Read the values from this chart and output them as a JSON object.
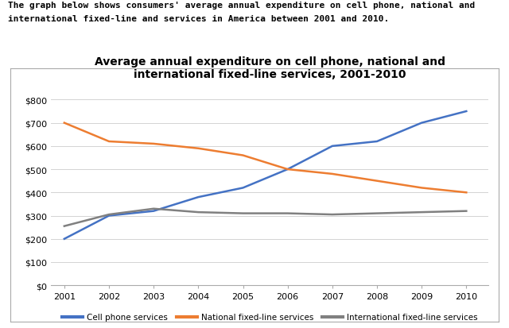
{
  "title": "Average annual expenditure on cell phone, national and\ninternational fixed-line services, 2001-2010",
  "header_line1": "The graph below shows consumers' average annual expenditure on cell phone, national and",
  "header_line2": "international fixed-line and services in America between 2001 and 2010.",
  "years": [
    2001,
    2002,
    2003,
    2004,
    2005,
    2006,
    2007,
    2008,
    2009,
    2010
  ],
  "cell_phone": [
    200,
    300,
    320,
    380,
    420,
    500,
    600,
    620,
    700,
    750
  ],
  "national_fixed": [
    700,
    620,
    610,
    590,
    560,
    500,
    480,
    450,
    420,
    400
  ],
  "international_fixed": [
    255,
    305,
    330,
    315,
    310,
    310,
    305,
    310,
    315,
    320
  ],
  "cell_phone_color": "#4472C4",
  "national_fixed_color": "#ED7D31",
  "international_fixed_color": "#808080",
  "background_color": "#FFFFFF",
  "grid_color": "#D3D3D3",
  "border_color": "#AAAAAA",
  "ylim": [
    0,
    850
  ],
  "yticks": [
    0,
    100,
    200,
    300,
    400,
    500,
    600,
    700,
    800
  ],
  "legend_labels": [
    "Cell phone services",
    "National fixed-line services",
    "International fixed-line services"
  ],
  "figsize": [
    6.4,
    4.14
  ],
  "dpi": 100
}
